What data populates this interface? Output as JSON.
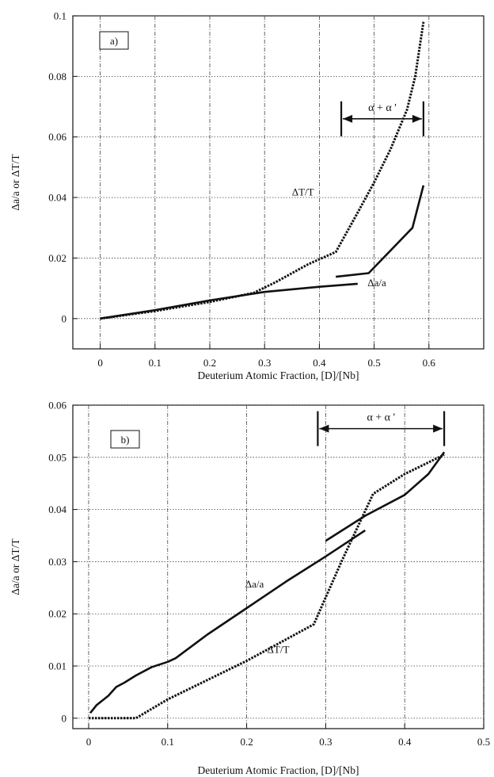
{
  "chart_data": [
    {
      "type": "line",
      "panel_label": "a)",
      "xlabel": "Deuterium Atomic Fraction, [D]/[Nb]",
      "ylabel": "Δa/a or ΔT/T",
      "xlim": [
        -0.05,
        0.7
      ],
      "ylim": [
        -0.01,
        0.1
      ],
      "x_ticks": [
        0,
        0.1,
        0.2,
        0.3,
        0.4,
        0.5,
        0.6
      ],
      "x_tick_labels": [
        "0",
        "0.1",
        "0.2",
        "0.3",
        "0.4",
        "0.5",
        "0.6"
      ],
      "y_ticks": [
        0,
        0.02,
        0.04,
        0.06,
        0.08,
        0.1
      ],
      "y_tick_labels": [
        "0",
        "0.02",
        "0.04",
        "0.06",
        "0.08",
        "0.1"
      ],
      "grid": true,
      "series": [
        {
          "name": "ΔT/T",
          "style": "dotted",
          "points": [
            [
              0,
              0
            ],
            [
              0.1,
              0.0025
            ],
            [
              0.2,
              0.0055
            ],
            [
              0.28,
              0.0085
            ],
            [
              0.32,
              0.012
            ],
            [
              0.38,
              0.018
            ],
            [
              0.43,
              0.022
            ],
            [
              0.47,
              0.035
            ],
            [
              0.5,
              0.045
            ],
            [
              0.53,
              0.056
            ],
            [
              0.56,
              0.069
            ],
            [
              0.575,
              0.08
            ],
            [
              0.59,
              0.098
            ]
          ]
        },
        {
          "name": "Δa/a",
          "style": "solid",
          "points": [
            [
              0,
              0
            ],
            [
              0.1,
              0.0028
            ],
            [
              0.2,
              0.006
            ],
            [
              0.3,
              0.0088
            ],
            [
              0.4,
              0.0105
            ],
            [
              0.47,
              0.0115
            ]
          ]
        },
        {
          "name": "Δa/a",
          "style": "solid",
          "points": [
            [
              0.43,
              0.0138
            ],
            [
              0.49,
              0.015
            ],
            [
              0.57,
              0.03
            ],
            [
              0.59,
              0.044
            ]
          ]
        }
      ],
      "annotations": [
        {
          "text": "α + α '",
          "x_from": 0.44,
          "x_to": 0.59,
          "y": 0.066
        },
        {
          "text": "ΔT/T",
          "x": 0.37,
          "y": 0.042
        },
        {
          "text": "Δa/a",
          "x": 0.505,
          "y": 0.012
        }
      ]
    },
    {
      "type": "line",
      "panel_label": "b)",
      "xlabel": "Deuterium Atomic Fraction, [D]/[Nb]",
      "ylabel": "Δa/a or ΔT/T",
      "xlim": [
        -0.02,
        0.5
      ],
      "ylim": [
        -0.002,
        0.06
      ],
      "x_ticks": [
        0,
        0.1,
        0.2,
        0.3,
        0.4,
        0.5
      ],
      "x_tick_labels": [
        "0",
        "0.1",
        "0.2",
        "0.3",
        "0.4",
        "0.5"
      ],
      "y_ticks": [
        0,
        0.01,
        0.02,
        0.03,
        0.04,
        0.05,
        0.06
      ],
      "y_tick_labels": [
        "0",
        "0.01",
        "0.02",
        "0.03",
        "0.04",
        "0.05",
        "0.06"
      ],
      "grid": true,
      "series": [
        {
          "name": "Δa/a",
          "style": "solid",
          "points": [
            [
              0.002,
              0.001
            ],
            [
              0.01,
              0.0025
            ],
            [
              0.025,
              0.0043
            ],
            [
              0.035,
              0.006
            ],
            [
              0.045,
              0.0068
            ],
            [
              0.06,
              0.0082
            ],
            [
              0.08,
              0.0098
            ],
            [
              0.1,
              0.0108
            ],
            [
              0.11,
              0.0115
            ],
            [
              0.15,
              0.016
            ],
            [
              0.2,
              0.0211
            ],
            [
              0.25,
              0.0262
            ],
            [
              0.3,
              0.031
            ],
            [
              0.35,
              0.036
            ]
          ]
        },
        {
          "name": "Δa/a",
          "style": "solid",
          "points": [
            [
              0.3,
              0.034
            ],
            [
              0.35,
              0.0388
            ],
            [
              0.4,
              0.0428
            ],
            [
              0.43,
              0.0468
            ],
            [
              0.45,
              0.051
            ]
          ]
        },
        {
          "name": "ΔT/T",
          "style": "dotted",
          "points": [
            [
              0,
              0
            ],
            [
              0.06,
              0
            ],
            [
              0.1,
              0.0036
            ],
            [
              0.2,
              0.011
            ],
            [
              0.285,
              0.018
            ],
            [
              0.32,
              0.03
            ],
            [
              0.36,
              0.043
            ],
            [
              0.4,
              0.0468
            ],
            [
              0.45,
              0.0505
            ]
          ]
        }
      ],
      "annotations": [
        {
          "text": "α + α '",
          "x_from": 0.29,
          "x_to": 0.45,
          "y": 0.0555
        },
        {
          "text": "Δa/a",
          "x": 0.21,
          "y": 0.0258
        },
        {
          "text": "ΔT/T",
          "x": 0.24,
          "y": 0.0133
        }
      ]
    }
  ]
}
